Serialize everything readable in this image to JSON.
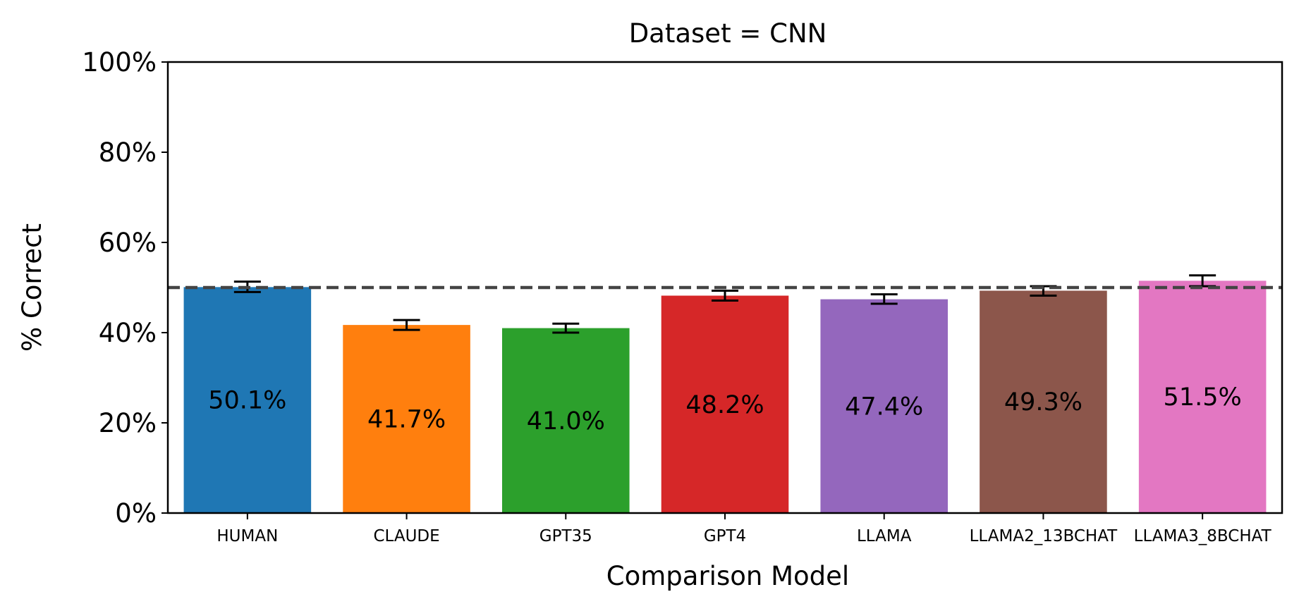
{
  "chart_data": {
    "type": "bar",
    "title": "Dataset = CNN",
    "xlabel": "Comparison Model",
    "ylabel": "% Correct",
    "ylim": [
      0,
      100
    ],
    "yticks": [
      0,
      20,
      40,
      60,
      80,
      100
    ],
    "ytick_labels": [
      "0%",
      "20%",
      "40%",
      "60%",
      "80%",
      "100%"
    ],
    "categories": [
      "HUMAN",
      "CLAUDE",
      "GPT35",
      "GPT4",
      "LLAMA",
      "LLAMA2_13BCHAT",
      "LLAMA3_8BCHAT"
    ],
    "values": [
      50.1,
      41.7,
      41.0,
      48.2,
      47.4,
      49.3,
      51.5
    ],
    "value_labels": [
      "50.1%",
      "41.7%",
      "41.0%",
      "48.2%",
      "47.4%",
      "49.3%",
      "51.5%"
    ],
    "error_bars": [
      [
        49.0,
        51.3
      ],
      [
        40.6,
        42.8
      ],
      [
        40.0,
        42.0
      ],
      [
        47.1,
        49.3
      ],
      [
        46.4,
        48.5
      ],
      [
        48.2,
        50.3
      ],
      [
        50.3,
        52.7
      ]
    ],
    "colors": [
      "#1f77b4",
      "#ff7f0e",
      "#2ca02c",
      "#d62728",
      "#9467bd",
      "#8c564b",
      "#e377c2"
    ],
    "reference_line": {
      "value": 50,
      "style": "dashed",
      "color": "#444444"
    },
    "grid": false,
    "legend": "none"
  }
}
